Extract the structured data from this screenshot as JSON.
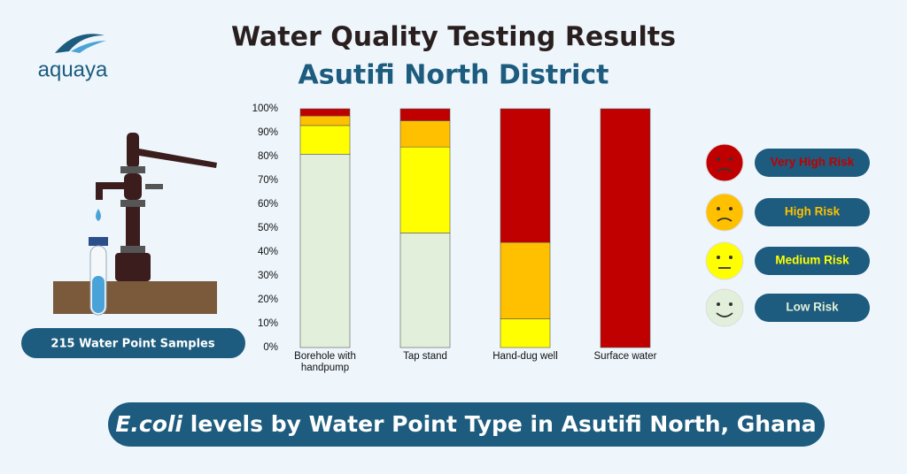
{
  "logo": "aquaya",
  "sample_note": "215 Water Point Samples",
  "footer": {
    "emphasis": "E.coli",
    "text": "levels by Water Point Type in Asutifi North, Ghana"
  },
  "chart_data": {
    "type": "stacked_bar",
    "title": "Water Quality Testing Results",
    "subtitle": "Asutifi North District",
    "categories": [
      "Borehole with handpump",
      "Tap stand",
      "Hand-dug well",
      "Surface water"
    ],
    "series": [
      {
        "name": "Very High Risk",
        "color": "#c00000",
        "values": [
          3,
          5,
          56,
          100
        ]
      },
      {
        "name": "High Risk",
        "color": "#ffc000",
        "values": [
          4,
          11,
          32,
          0
        ]
      },
      {
        "name": "Medium Risk",
        "color": "#ffff00",
        "values": [
          12,
          36,
          12,
          0
        ]
      },
      {
        "name": "Low Risk",
        "color": "#e2efda",
        "values": [
          81,
          48,
          0,
          0
        ]
      }
    ],
    "ylim": [
      0,
      100
    ],
    "yticks": [
      {
        "value": 0,
        "label": "0%"
      },
      {
        "value": 10,
        "label": "10%"
      },
      {
        "value": 20,
        "label": "20%"
      },
      {
        "value": 30,
        "label": "30%"
      },
      {
        "value": 40,
        "label": "40%"
      },
      {
        "value": 50,
        "label": "50%"
      },
      {
        "value": 60,
        "label": "60%"
      },
      {
        "value": 70,
        "label": "70%"
      },
      {
        "value": 80,
        "label": "80%"
      },
      {
        "value": 90,
        "label": "90%"
      },
      {
        "value": 100,
        "label": "100%"
      }
    ],
    "legend": "right"
  }
}
